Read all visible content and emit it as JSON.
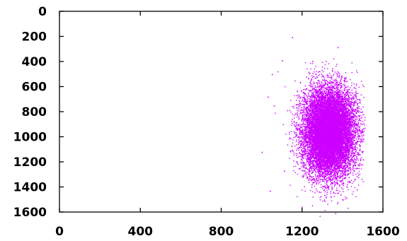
{
  "chart_data": {
    "type": "scatter",
    "title": "",
    "xlabel": "",
    "ylabel": "",
    "xlim": [
      0,
      1600
    ],
    "ylim": [
      0,
      1600
    ],
    "y_inverted": true,
    "grid": false,
    "legend": "none",
    "x_ticks": [
      "0",
      "400",
      "800",
      "1200",
      "1600"
    ],
    "y_ticks": [
      "0",
      "200",
      "400",
      "600",
      "800",
      "1000",
      "1200",
      "1400",
      "1600"
    ],
    "series": [
      {
        "color": "#cc00ff",
        "cluster": {
          "center": [
            1330,
            960
          ],
          "core_x_range": [
            1170,
            1490
          ],
          "core_y_range": [
            560,
            1420
          ],
          "approx_point_count": 14000
        },
        "outliers": [
          [
            1150,
            205
          ],
          [
            1375,
            285
          ],
          [
            1100,
            390
          ],
          [
            1250,
            395
          ],
          [
            1050,
            500
          ],
          [
            1220,
            520
          ],
          [
            1030,
            680
          ],
          [
            1060,
            750
          ],
          [
            1000,
            1120
          ],
          [
            1040,
            1430
          ],
          [
            1310,
            1510
          ],
          [
            1390,
            1460
          ],
          [
            1470,
            1420
          ],
          [
            1110,
            1270
          ],
          [
            1500,
            1180
          ]
        ]
      }
    ]
  }
}
